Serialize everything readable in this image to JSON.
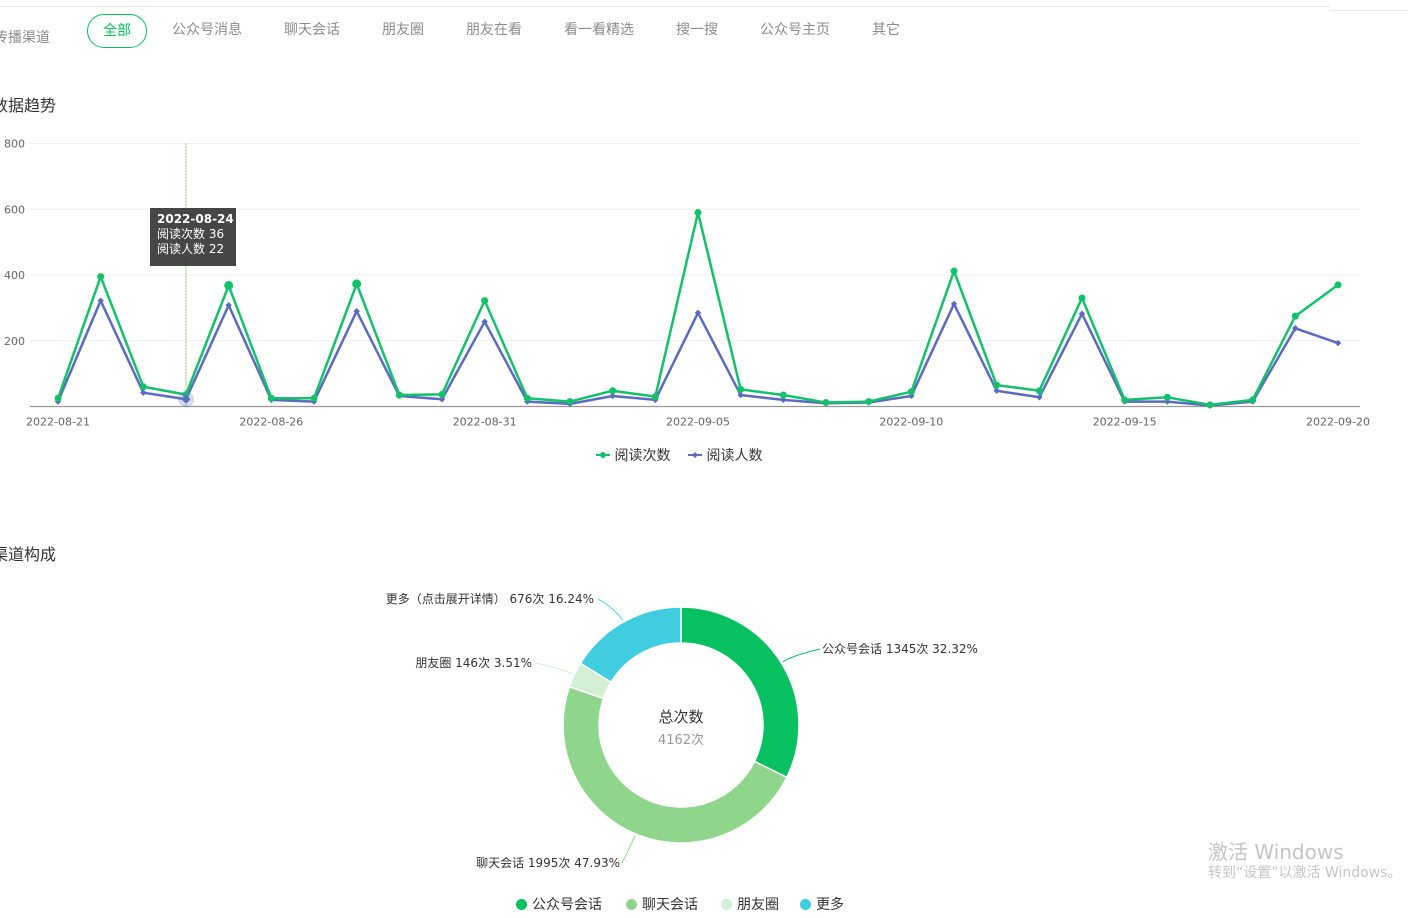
{
  "channel_filter": {
    "label": "传播渠道",
    "tabs": [
      {
        "label": "全部",
        "active": true
      },
      {
        "label": "公众号消息",
        "active": false
      },
      {
        "label": "聊天会话",
        "active": false
      },
      {
        "label": "朋友圈",
        "active": false
      },
      {
        "label": "朋友在看",
        "active": false
      },
      {
        "label": "看一看精选",
        "active": false
      },
      {
        "label": "搜一搜",
        "active": false
      },
      {
        "label": "公众号主页",
        "active": false
      },
      {
        "label": "其它",
        "active": false
      }
    ]
  },
  "trend_section": {
    "title": "数据趋势"
  },
  "composition_section": {
    "title": "渠道构成"
  },
  "colors": {
    "accent": "#07c160",
    "reads_line": "#14c16b",
    "readers_line": "#5b6bc0",
    "slice_official": "#07c160",
    "slice_chat": "#8fd68c",
    "slice_moments": "#d3efd4",
    "slice_more": "#40cde0"
  },
  "chart_data": [
    {
      "type": "line",
      "x": [
        "2022-08-21",
        "2022-08-22",
        "2022-08-23",
        "2022-08-24",
        "2022-08-25",
        "2022-08-26",
        "2022-08-27",
        "2022-08-28",
        "2022-08-29",
        "2022-08-30",
        "2022-08-31",
        "2022-09-01",
        "2022-09-02",
        "2022-09-03",
        "2022-09-04",
        "2022-09-05",
        "2022-09-06",
        "2022-09-07",
        "2022-09-08",
        "2022-09-09",
        "2022-09-10",
        "2022-09-11",
        "2022-09-12",
        "2022-09-13",
        "2022-09-14",
        "2022-09-15",
        "2022-09-16",
        "2022-09-17",
        "2022-09-18",
        "2022-09-19",
        "2022-09-20"
      ],
      "x_tick_labels": [
        "2022-08-21",
        "2022-08-26",
        "2022-08-31",
        "2022-09-05",
        "2022-09-10",
        "2022-09-15",
        "2022-09-20"
      ],
      "y_tick_labels": [
        "800",
        "600",
        "400",
        "200"
      ],
      "ylim": [
        0,
        800
      ],
      "grid": true,
      "legend_position": "bottom",
      "series": [
        {
          "name": "阅读次数",
          "values": [
            25,
            395,
            60,
            36,
            368,
            25,
            25,
            373,
            35,
            37,
            322,
            25,
            15,
            48,
            30,
            590,
            52,
            35,
            12,
            15,
            45,
            412,
            65,
            48,
            330,
            20,
            28,
            5,
            20,
            275,
            370
          ]
        },
        {
          "name": "阅读人数",
          "values": [
            15,
            322,
            42,
            22,
            308,
            20,
            15,
            290,
            32,
            22,
            258,
            15,
            8,
            32,
            20,
            285,
            35,
            20,
            10,
            12,
            32,
            312,
            48,
            28,
            282,
            15,
            15,
            3,
            15,
            238,
            193
          ]
        }
      ],
      "tooltip": {
        "date": "2022-08-24",
        "reads_label": "阅读次数 36",
        "readers_label": "阅读人数 22"
      }
    },
    {
      "type": "pie",
      "center_title": "总次数",
      "center_value": "4162次",
      "slices": [
        {
          "name": "公众号会话",
          "value": 1345,
          "label": "公众号会话 1345次 32.32%"
        },
        {
          "name": "聊天会话",
          "value": 1995,
          "label": "聊天会话 1995次 47.93%"
        },
        {
          "name": "朋友圈",
          "value": 146,
          "label": "朋友圈 146次 3.51%"
        },
        {
          "name": "更多",
          "value": 676,
          "label": "更多（点击展开详情） 676次 16.24%"
        }
      ],
      "legend": [
        "公众号会话",
        "聊天会话",
        "朋友圈",
        "更多"
      ],
      "legend_position": "bottom"
    }
  ],
  "watermark": {
    "line1": "激活 Windows",
    "line2": "转到“设置”以激活 Windows。"
  }
}
